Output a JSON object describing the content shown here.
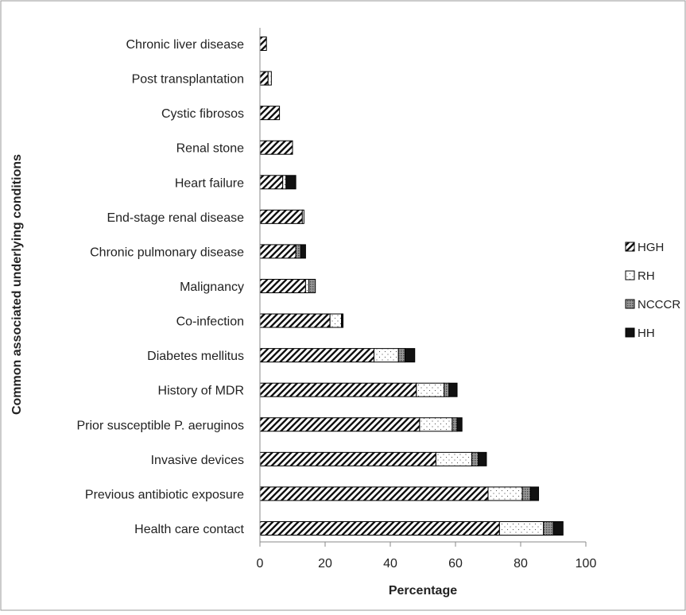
{
  "chart_data": {
    "type": "bar",
    "orientation": "horizontal",
    "stacked": true,
    "title": "",
    "xlabel": "Percentage",
    "ylabel": "Common associated underlying conditions",
    "xlim": [
      0,
      100
    ],
    "xticks": [
      0,
      20,
      40,
      60,
      80,
      100
    ],
    "grid": false,
    "legend_position": "right",
    "categories": [
      "Chronic liver disease",
      "Post transplantation",
      "Cystic fibrosos",
      "Renal stone",
      "Heart failure",
      "End-stage renal disease",
      "Chronic pulmonary disease",
      "Malignancy",
      "Co-infection",
      "Diabetes mellitus",
      "History of MDR",
      "Prior susceptible P. aeruginos",
      "Invasive devices",
      "Previous antibiotic exposure",
      "Health care contact"
    ],
    "series": [
      {
        "name": "HGH",
        "pattern": "diagonal-hatch",
        "values": [
          2,
          2.5,
          6,
          10,
          7,
          13,
          11,
          14,
          21.5,
          35,
          48,
          49,
          54,
          70,
          73.5
        ]
      },
      {
        "name": "RH",
        "pattern": "dotted-white",
        "values": [
          0,
          1,
          0,
          0,
          1,
          0.5,
          0,
          1,
          3.5,
          7.5,
          8.5,
          10,
          11,
          10.5,
          13.5
        ]
      },
      {
        "name": "NCCCR",
        "pattern": "crosshatch-gray",
        "values": [
          0,
          0,
          0,
          0,
          0,
          0,
          1.5,
          2,
          0,
          2,
          1.5,
          1.5,
          2,
          2.5,
          3
        ]
      },
      {
        "name": "HH",
        "pattern": "solid-black",
        "values": [
          0,
          0,
          0,
          0,
          3,
          0,
          1.5,
          0,
          0.5,
          3,
          2.5,
          1.5,
          2.5,
          2.5,
          3
        ]
      }
    ]
  }
}
